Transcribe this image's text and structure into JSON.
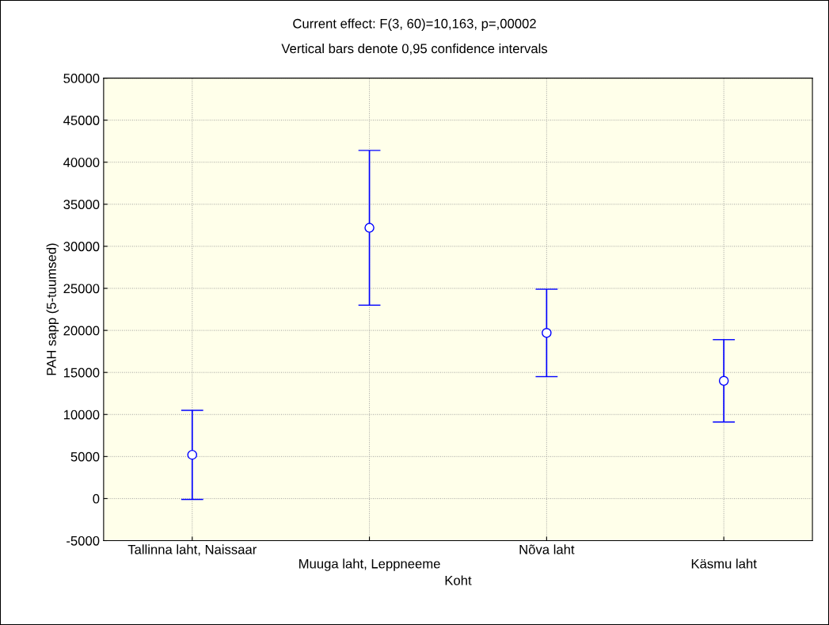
{
  "chart_data": {
    "type": "scatter",
    "title": "Current effect: F(3, 60)=10,163, p=,00002",
    "subtitle": "Vertical bars denote 0,95 confidence intervals",
    "xlabel": "Koht",
    "ylabel": "PAH sapp (5-tuumsed)",
    "categories": [
      "Tallinna laht, Naissaar",
      "Muuga laht, Leppneeme",
      "Nõva laht",
      "Käsmu laht"
    ],
    "series": [
      {
        "color": "#0000ff",
        "values": [
          5200,
          32200,
          19700,
          14000
        ],
        "errors": [
          5300,
          9200,
          5200,
          4900
        ]
      }
    ],
    "ylim": [
      -5000,
      50000
    ],
    "yticks": [
      -5000,
      0,
      5000,
      10000,
      15000,
      20000,
      25000,
      30000,
      35000,
      40000,
      45000,
      50000
    ],
    "grid": true,
    "marker": "circle"
  }
}
